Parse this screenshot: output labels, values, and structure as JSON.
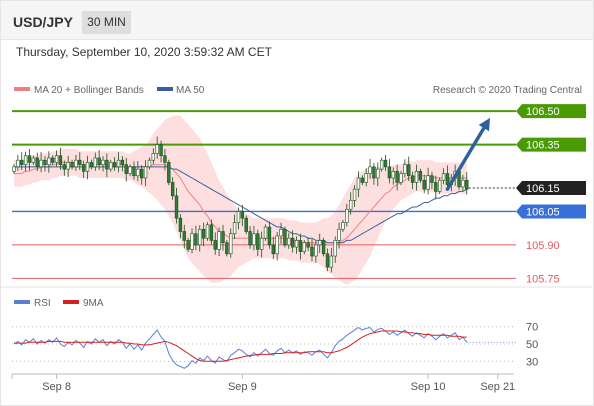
{
  "header": {
    "symbol": "USD/JPY",
    "timeframe": "30 MIN",
    "datetime": "Thursday, September 10, 2020 3:59:32 AM CET"
  },
  "colors": {
    "up_candle": "#ffffff",
    "down_candle": "#2e7d32",
    "bollinger_fill": "#fdd9d9",
    "ma20": "#f08080",
    "ma50": "#3a5f9e",
    "resistance": "#4a9a06",
    "support": "#3b6fd8",
    "minor_support": "#e85a5a",
    "arrow": "#2e5f9e",
    "rsi": "#5b7fd6",
    "rsi_ma": "#d42020"
  },
  "chart_data": [
    {
      "type": "candlestick",
      "legend": [
        {
          "name": "MA 20 + Bollinger Bands",
          "color": "#f08080"
        },
        {
          "name": "MA 50",
          "color": "#3a5f9e"
        }
      ],
      "legend_placement": "top-left",
      "credit": "Research © 2020 Trading Central",
      "ylim": [
        105.72,
        106.55
      ],
      "x_ticks": [
        {
          "label": "Sep 8",
          "index": 11
        },
        {
          "label": "Sep 9",
          "index": 59
        },
        {
          "label": "Sep 10",
          "index": 107
        },
        {
          "label": "Sep 21",
          "index": 125
        }
      ],
      "levels": [
        {
          "label": "106.50",
          "value": 106.5,
          "kind": "resistance"
        },
        {
          "label": "106.35",
          "value": 106.35,
          "kind": "resistance"
        },
        {
          "label": "106.15",
          "value": 106.155,
          "kind": "last"
        },
        {
          "label": "106.05",
          "value": 106.05,
          "kind": "support"
        },
        {
          "label": "105.90",
          "value": 105.9,
          "kind": "minor_support"
        },
        {
          "label": "105.75",
          "value": 105.75,
          "kind": "minor_support"
        }
      ],
      "forecast_arrow": {
        "from": {
          "index": 112,
          "value": 106.15
        },
        "to": {
          "index": 123,
          "value": 106.47
        }
      },
      "close": [
        106.25,
        106.28,
        106.26,
        106.3,
        106.27,
        106.29,
        106.25,
        106.28,
        106.26,
        106.29,
        106.27,
        106.3,
        106.26,
        106.24,
        106.27,
        106.25,
        106.28,
        106.26,
        106.23,
        106.27,
        106.25,
        106.29,
        106.26,
        106.28,
        106.24,
        106.27,
        106.25,
        106.28,
        106.26,
        106.22,
        106.25,
        106.21,
        106.24,
        106.2,
        106.25,
        106.28,
        106.31,
        106.35,
        106.3,
        106.27,
        106.18,
        106.12,
        106.02,
        105.96,
        105.92,
        105.88,
        105.95,
        105.9,
        105.97,
        105.93,
        105.99,
        105.92,
        105.88,
        105.96,
        105.91,
        105.86,
        105.95,
        106.0,
        106.05,
        106.02,
        105.96,
        105.9,
        105.95,
        105.88,
        105.93,
        105.98,
        105.9,
        105.86,
        105.94,
        105.97,
        105.9,
        105.93,
        105.89,
        105.92,
        105.87,
        105.91,
        105.89,
        105.85,
        105.9,
        105.92,
        105.86,
        105.8,
        105.85,
        105.92,
        105.97,
        106.0,
        106.06,
        106.1,
        106.15,
        106.2,
        106.18,
        106.22,
        106.25,
        106.2,
        106.24,
        106.28,
        106.25,
        106.2,
        106.23,
        106.18,
        106.22,
        106.26,
        106.21,
        106.18,
        106.23,
        106.19,
        106.15,
        106.21,
        106.18,
        106.14,
        106.19,
        106.22,
        106.17,
        106.2,
        106.23,
        106.16,
        106.19,
        106.15
      ],
      "ma20": [
        106.22,
        106.22,
        106.22,
        106.23,
        106.23,
        106.24,
        106.24,
        106.25,
        106.25,
        106.25,
        106.26,
        106.26,
        106.27,
        106.27,
        106.27,
        106.27,
        106.27,
        106.26,
        106.26,
        106.26,
        106.26,
        106.26,
        106.26,
        106.26,
        106.26,
        106.26,
        106.26,
        106.26,
        106.26,
        106.25,
        106.25,
        106.25,
        106.25,
        106.25,
        106.25,
        106.25,
        106.26,
        106.26,
        106.26,
        106.26,
        106.25,
        106.24,
        106.22,
        106.2,
        106.17,
        106.14,
        106.12,
        106.1,
        106.08,
        106.05,
        106.03,
        106.0,
        105.98,
        105.96,
        105.95,
        105.94,
        105.93,
        105.93,
        105.93,
        105.93,
        105.93,
        105.93,
        105.93,
        105.93,
        105.93,
        105.93,
        105.93,
        105.93,
        105.93,
        105.93,
        105.93,
        105.92,
        105.92,
        105.92,
        105.91,
        105.91,
        105.91,
        105.91,
        105.91,
        105.91,
        105.91,
        105.9,
        105.9,
        105.9,
        105.91,
        105.92,
        105.93,
        105.95,
        105.97,
        105.99,
        106.01,
        106.03,
        106.05,
        106.07,
        106.09,
        106.11,
        106.13,
        106.14,
        106.16,
        106.17,
        106.18,
        106.19,
        106.2,
        106.2,
        106.21,
        106.21,
        106.21,
        106.21,
        106.21,
        106.2,
        106.2,
        106.2,
        106.2,
        106.2,
        106.2,
        106.2,
        106.2,
        106.2
      ],
      "ma50": [
        106.25,
        106.25,
        106.25,
        106.25,
        106.25,
        106.25,
        106.25,
        106.25,
        106.25,
        106.25,
        106.25,
        106.25,
        106.25,
        106.25,
        106.25,
        106.25,
        106.25,
        106.25,
        106.25,
        106.25,
        106.25,
        106.25,
        106.25,
        106.25,
        106.25,
        106.25,
        106.25,
        106.25,
        106.25,
        106.25,
        106.25,
        106.25,
        106.25,
        106.25,
        106.25,
        106.25,
        106.25,
        106.25,
        106.25,
        106.25,
        106.25,
        106.24,
        106.24,
        106.23,
        106.22,
        106.21,
        106.2,
        106.19,
        106.18,
        106.17,
        106.16,
        106.15,
        106.14,
        106.13,
        106.12,
        106.11,
        106.1,
        106.09,
        106.08,
        106.07,
        106.06,
        106.05,
        106.04,
        106.03,
        106.02,
        106.01,
        106.0,
        105.99,
        105.98,
        105.98,
        105.97,
        105.96,
        105.95,
        105.95,
        105.94,
        105.94,
        105.93,
        105.93,
        105.92,
        105.92,
        105.92,
        105.91,
        105.91,
        105.91,
        105.91,
        105.91,
        105.92,
        105.92,
        105.93,
        105.94,
        105.95,
        105.96,
        105.97,
        105.98,
        105.99,
        106.0,
        106.01,
        106.02,
        106.03,
        106.04,
        106.04,
        106.05,
        106.06,
        106.07,
        106.07,
        106.08,
        106.09,
        106.09,
        106.1,
        106.11,
        106.11,
        106.12,
        106.12,
        106.13,
        106.13,
        106.14,
        106.14,
        106.15
      ],
      "bb_width": [
        0.06,
        0.06,
        0.06,
        0.06,
        0.06,
        0.06,
        0.06,
        0.06,
        0.06,
        0.06,
        0.06,
        0.06,
        0.06,
        0.06,
        0.06,
        0.06,
        0.06,
        0.06,
        0.06,
        0.06,
        0.06,
        0.06,
        0.06,
        0.06,
        0.06,
        0.06,
        0.06,
        0.06,
        0.06,
        0.06,
        0.06,
        0.07,
        0.08,
        0.09,
        0.1,
        0.12,
        0.14,
        0.16,
        0.18,
        0.2,
        0.22,
        0.24,
        0.26,
        0.28,
        0.29,
        0.3,
        0.3,
        0.3,
        0.3,
        0.29,
        0.28,
        0.27,
        0.25,
        0.23,
        0.21,
        0.19,
        0.17,
        0.15,
        0.13,
        0.12,
        0.11,
        0.1,
        0.09,
        0.09,
        0.09,
        0.09,
        0.09,
        0.09,
        0.09,
        0.09,
        0.09,
        0.09,
        0.09,
        0.09,
        0.09,
        0.09,
        0.09,
        0.09,
        0.09,
        0.1,
        0.11,
        0.12,
        0.13,
        0.15,
        0.17,
        0.19,
        0.21,
        0.22,
        0.23,
        0.23,
        0.22,
        0.21,
        0.2,
        0.18,
        0.16,
        0.14,
        0.12,
        0.11,
        0.1,
        0.09,
        0.08,
        0.08,
        0.08,
        0.07,
        0.07,
        0.07,
        0.07,
        0.07,
        0.07,
        0.07,
        0.07,
        0.07,
        0.07,
        0.07,
        0.07,
        0.07,
        0.07,
        0.07
      ]
    },
    {
      "type": "line",
      "legend": [
        {
          "name": "RSI",
          "color": "#5b7fd6"
        },
        {
          "name": "9MA",
          "color": "#d42020"
        }
      ],
      "ylim": [
        20,
        80
      ],
      "y_ticks": [
        70,
        50,
        30
      ],
      "series": [
        {
          "name": "RSI",
          "values": [
            50,
            53,
            49,
            55,
            52,
            56,
            50,
            54,
            51,
            55,
            52,
            57,
            50,
            47,
            52,
            49,
            54,
            51,
            46,
            53,
            50,
            56,
            52,
            55,
            48,
            53,
            50,
            55,
            52,
            45,
            50,
            44,
            49,
            43,
            51,
            56,
            61,
            66,
            58,
            53,
            39,
            31,
            26,
            24,
            22,
            25,
            31,
            28,
            34,
            31,
            36,
            31,
            28,
            35,
            32,
            30,
            37,
            40,
            44,
            42,
            38,
            35,
            40,
            36,
            40,
            44,
            39,
            37,
            42,
            45,
            40,
            43,
            40,
            42,
            38,
            41,
            40,
            37,
            41,
            43,
            38,
            34,
            40,
            48,
            53,
            56,
            60,
            63,
            66,
            69,
            66,
            68,
            69,
            64,
            67,
            68,
            65,
            61,
            64,
            60,
            63,
            66,
            62,
            59,
            63,
            60,
            57,
            62,
            59,
            55,
            59,
            62,
            57,
            60,
            63,
            55,
            58,
            52
          ]
        },
        {
          "name": "9MA",
          "values": [
            51,
            51,
            51,
            51,
            52,
            52,
            52,
            52,
            52,
            53,
            53,
            53,
            53,
            52,
            52,
            52,
            52,
            52,
            52,
            52,
            52,
            52,
            52,
            52,
            52,
            52,
            52,
            52,
            52,
            51,
            51,
            50,
            50,
            49,
            49,
            49,
            50,
            51,
            52,
            53,
            52,
            50,
            48,
            45,
            42,
            39,
            36,
            33,
            31,
            30,
            30,
            30,
            30,
            30,
            30,
            31,
            32,
            33,
            34,
            35,
            36,
            37,
            37,
            38,
            38,
            38,
            38,
            39,
            39,
            39,
            40,
            40,
            40,
            40,
            40,
            40,
            41,
            41,
            41,
            41,
            41,
            40,
            40,
            41,
            42,
            44,
            46,
            49,
            52,
            55,
            58,
            60,
            62,
            63,
            64,
            65,
            65,
            65,
            65,
            65,
            64,
            64,
            63,
            63,
            62,
            62,
            61,
            61,
            60,
            60,
            60,
            60,
            60,
            59,
            59,
            59,
            58,
            58
          ]
        }
      ]
    }
  ]
}
